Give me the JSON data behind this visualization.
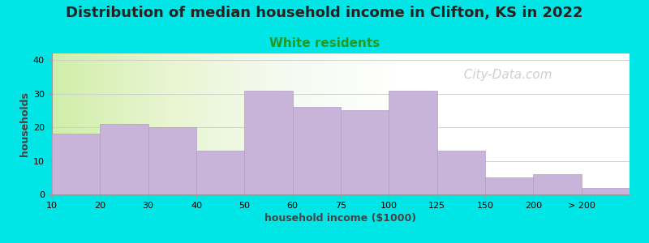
{
  "title": "Distribution of median household income in Clifton, KS in 2022",
  "subtitle": "White residents",
  "xlabel": "household income ($1000)",
  "ylabel": "households",
  "bg_outer": "#00e5e5",
  "bar_color": "#c8b4d8",
  "bar_edge_color": "#b0a0c8",
  "categories": [
    "10",
    "20",
    "30",
    "40",
    "50",
    "60",
    "75",
    "100",
    "125",
    "150",
    "200",
    "> 200"
  ],
  "values": [
    18,
    21,
    20,
    13,
    31,
    26,
    25,
    31,
    13,
    5,
    6,
    2
  ],
  "ylim": [
    0,
    42
  ],
  "yticks": [
    0,
    10,
    20,
    30,
    40
  ],
  "watermark": "  City-Data.com",
  "title_fontsize": 13,
  "subtitle_fontsize": 11,
  "subtitle_color": "#229922",
  "axis_label_fontsize": 9,
  "tick_fontsize": 8,
  "watermark_color": "#bbbbbb",
  "watermark_fontsize": 11,
  "title_color": "#222222"
}
